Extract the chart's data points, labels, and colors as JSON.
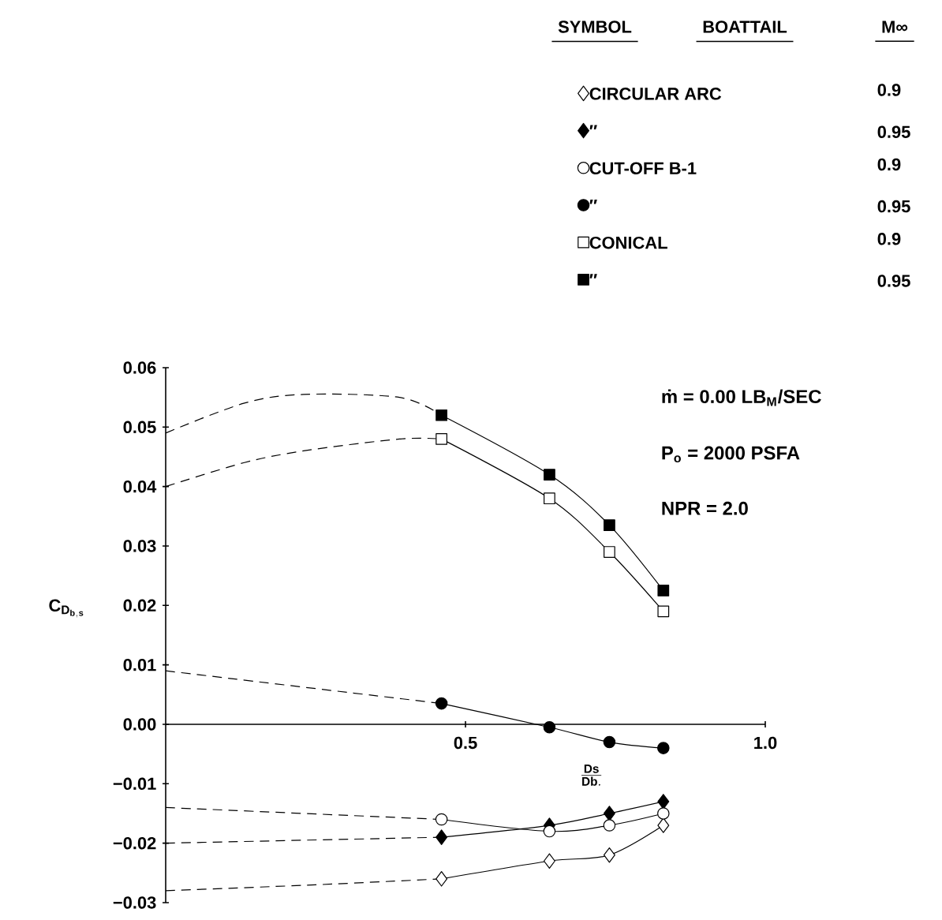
{
  "chart_data": {
    "type": "line",
    "xlabel": "\\frac{\\mathbf{Ds}}{\\mathbf{Db.}}",
    "ylabel": "\\mathbf{C_{D_{b,s}}}",
    "xlim": [
      0,
      1.0
    ],
    "ylim": [
      -0.03,
      0.06
    ],
    "xticks": [
      {
        "value": 0.5,
        "label": "0.5"
      },
      {
        "value": 1.0,
        "label": "1.0"
      }
    ],
    "yticks": [
      {
        "value": -0.03,
        "label": "−0.03"
      },
      {
        "value": -0.02,
        "label": "−0.02"
      },
      {
        "value": -0.01,
        "label": "−0.01"
      },
      {
        "value": 0.0,
        "label": "0.00"
      },
      {
        "value": 0.01,
        "label": "0.01"
      },
      {
        "value": 0.02,
        "label": "0.02"
      },
      {
        "value": 0.03,
        "label": "0.03"
      },
      {
        "value": 0.04,
        "label": "0.04"
      },
      {
        "value": 0.05,
        "label": "0.05"
      },
      {
        "value": 0.06,
        "label": "0.06"
      }
    ],
    "legend": "top right",
    "annotations": [
      "SYMBOL",
      "BOATTAIL",
      "M∞",
      "0.9",
      "0.95",
      "0.9",
      "0.95",
      "0.9",
      "0.95",
      "ṁ = 0.00 LB$_{M}$/SEC",
      "P$_{o}$ = 2000 PSFA",
      "NPR = 2.0"
    ],
    "series": [
      {
        "name": "CIRCULAR ARC",
        "color": "#ffffff",
        "marker": "diamond",
        "line_style": "solid",
        "x": [
          0.46,
          0.64,
          0.74,
          0.83
        ],
        "values": [
          -0.026,
          -0.023,
          -0.022,
          -0.017
        ]
      },
      {
        "name": "″",
        "color": "#000000",
        "marker": "diamond",
        "line_style": "solid",
        "x": [
          0.46,
          0.64,
          0.74,
          0.83
        ],
        "values": [
          -0.019,
          -0.017,
          -0.015,
          -0.013
        ]
      },
      {
        "name": "CUT-OFF B-1",
        "color": "#ffffff",
        "marker": "circle",
        "line_style": "solid",
        "x": [
          0.46,
          0.64,
          0.74,
          0.83
        ],
        "values": [
          -0.016,
          -0.018,
          -0.017,
          -0.015
        ]
      },
      {
        "name": "″",
        "color": "#000000",
        "marker": "circle",
        "line_style": "solid",
        "x": [
          0.46,
          0.64,
          0.74,
          0.83
        ],
        "values": [
          0.0035,
          -0.0005,
          -0.003,
          -0.004
        ]
      },
      {
        "name": "CONICAL",
        "color": "#ffffff",
        "marker": "square",
        "line_style": "solid",
        "x": [
          0.46,
          0.64,
          0.74,
          0.83
        ],
        "values": [
          0.048,
          0.038,
          0.029,
          0.019
        ]
      },
      {
        "name": "″",
        "color": "#000000",
        "marker": "square",
        "line_style": "solid",
        "x": [
          0.46,
          0.64,
          0.74,
          0.83
        ],
        "values": [
          0.052,
          0.042,
          0.0335,
          0.0225
        ]
      },
      {
        "color": "#000000",
        "marker": "none",
        "line_style": "dashed",
        "x": [
          0,
          0.25,
          0.46
        ],
        "values": [
          -0.028,
          -0.027,
          -0.026
        ]
      },
      {
        "color": "#000000",
        "marker": "none",
        "line_style": "dashed",
        "x": [
          0,
          0.46
        ],
        "values": [
          -0.02,
          -0.019
        ]
      },
      {
        "color": "#000000",
        "marker": "none",
        "line_style": "dashed",
        "x": [
          0,
          0.46
        ],
        "values": [
          -0.014,
          -0.016
        ]
      },
      {
        "color": "#000000",
        "marker": "none",
        "line_style": "dashed",
        "x": [
          0,
          0.46
        ],
        "values": [
          0.009,
          0.0035
        ]
      },
      {
        "color": "#000000",
        "marker": "none",
        "line_style": "dashed",
        "x": [
          0,
          0.13,
          0.23,
          0.39,
          0.46
        ],
        "values": [
          0.04,
          0.044,
          0.046,
          0.048,
          0.048
        ]
      },
      {
        "color": "#000000",
        "marker": "none",
        "line_style": "dashed",
        "x": [
          0,
          0.13,
          0.23,
          0.39,
          0.46
        ],
        "values": [
          0.049,
          0.054,
          0.0555,
          0.055,
          0.052
        ]
      }
    ]
  }
}
